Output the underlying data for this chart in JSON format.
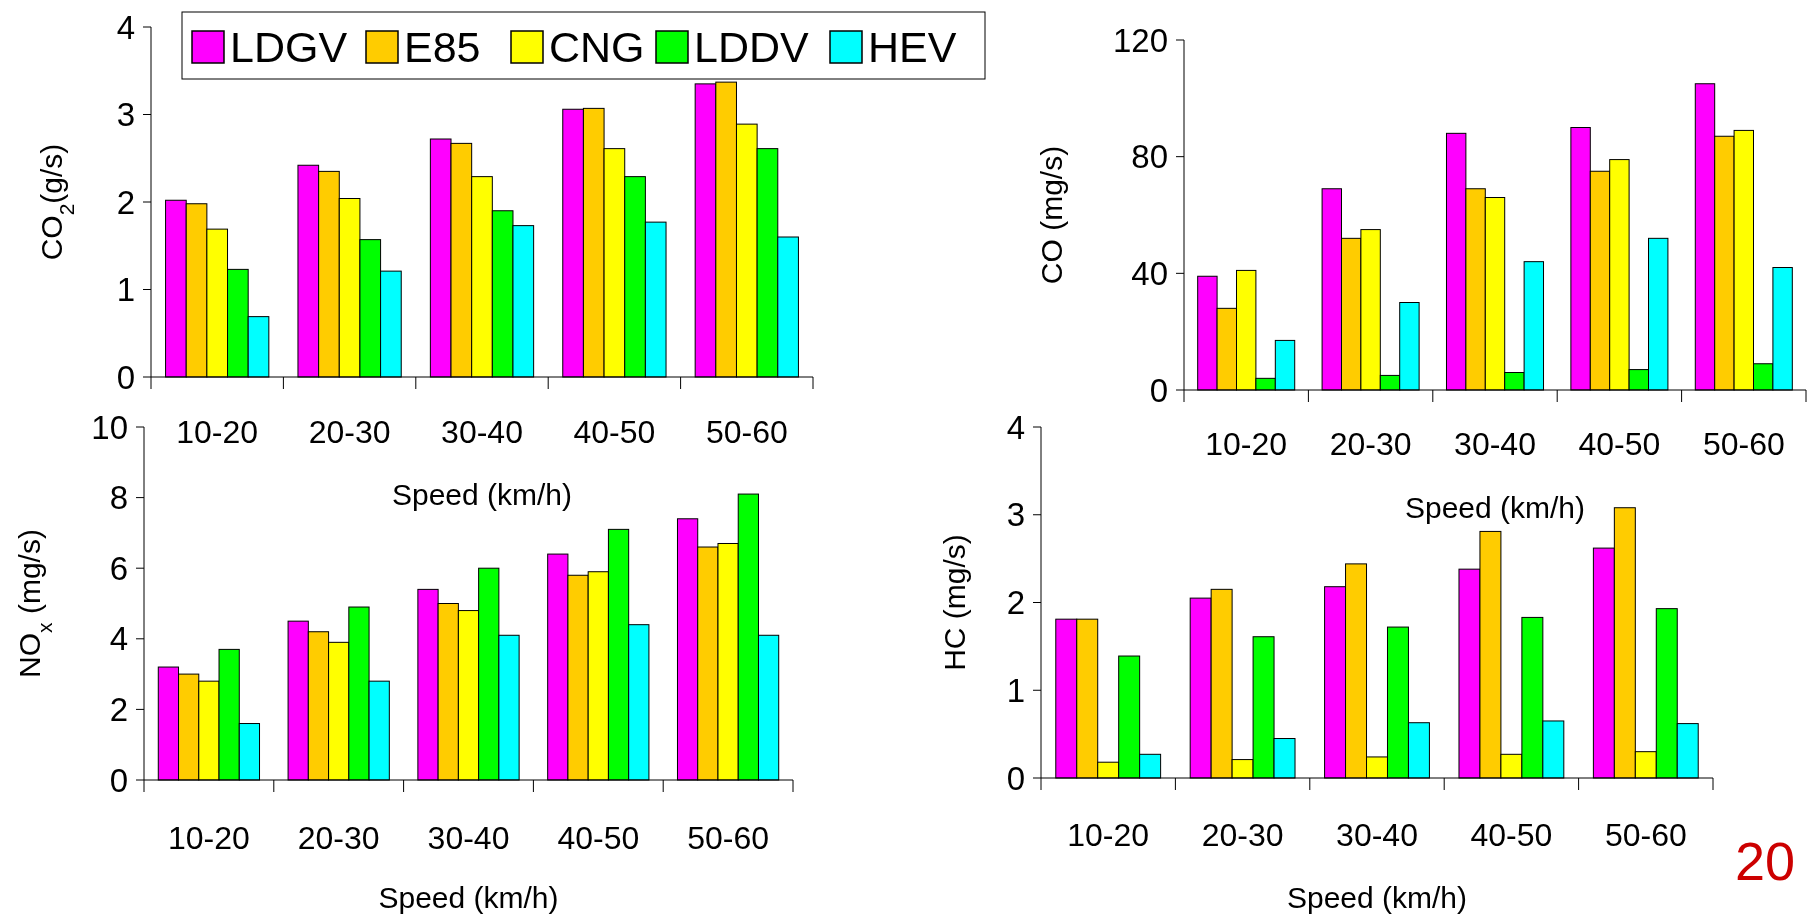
{
  "chart_data": [
    {
      "type": "bar",
      "ylabel": "CO$_{2}$(g/s)",
      "xlabel": "Speed (km/h)",
      "categories": [
        "10-20",
        "20-30",
        "30-40",
        "40-50",
        "50-60"
      ],
      "ylim": [
        0,
        4
      ],
      "yticks": [
        0,
        1,
        2,
        3,
        4
      ],
      "legend": "top",
      "series": [
        {
          "name": "LDGV",
          "color": "#ff00ff",
          "values": [
            2.02,
            2.42,
            2.72,
            3.06,
            3.35
          ]
        },
        {
          "name": "E85",
          "color": "#ffcc00",
          "values": [
            1.98,
            2.35,
            2.67,
            3.07,
            3.37
          ]
        },
        {
          "name": "CNG",
          "color": "#ffff00",
          "values": [
            1.69,
            2.04,
            2.29,
            2.61,
            2.89
          ]
        },
        {
          "name": "LDDV",
          "color": "#00ff00",
          "values": [
            1.23,
            1.57,
            1.9,
            2.29,
            2.61
          ]
        },
        {
          "name": "HEV",
          "color": "#00ffff",
          "values": [
            0.69,
            1.21,
            1.73,
            1.77,
            1.6
          ]
        }
      ]
    },
    {
      "type": "bar",
      "ylabel": "CO (mg/s)",
      "xlabel": "Speed (km/h)",
      "categories": [
        "10-20",
        "20-30",
        "30-40",
        "40-50",
        "50-60"
      ],
      "ylim": [
        0,
        120
      ],
      "yticks": [
        0,
        40,
        80,
        120
      ],
      "series": [
        {
          "color": "#ff00ff",
          "values": [
            39,
            69,
            88,
            90,
            105
          ]
        },
        {
          "color": "#ffcc00",
          "values": [
            28,
            52,
            69,
            75,
            87
          ]
        },
        {
          "color": "#ffff00",
          "values": [
            41,
            55,
            66,
            79,
            89
          ]
        },
        {
          "color": "#00ff00",
          "values": [
            4,
            5,
            6,
            7,
            9
          ]
        },
        {
          "color": "#00ffff",
          "values": [
            17,
            30,
            44,
            52,
            42
          ]
        }
      ]
    },
    {
      "type": "bar",
      "ylabel": "NO$_{x}$ (mg/s)",
      "xlabel": "Speed (km/h)",
      "categories": [
        "10-20",
        "20-30",
        "30-40",
        "40-50",
        "50-60"
      ],
      "ylim": [
        0,
        10
      ],
      "yticks": [
        0,
        2,
        4,
        6,
        8,
        10
      ],
      "series": [
        {
          "color": "#ff00ff",
          "values": [
            3.2,
            4.5,
            5.4,
            6.4,
            7.4
          ]
        },
        {
          "color": "#ffcc00",
          "values": [
            3.0,
            4.2,
            5.0,
            5.8,
            6.6
          ]
        },
        {
          "color": "#ffff00",
          "values": [
            2.8,
            3.9,
            4.8,
            5.9,
            6.7
          ]
        },
        {
          "color": "#00ff00",
          "values": [
            3.7,
            4.9,
            6.0,
            7.1,
            8.1
          ]
        },
        {
          "color": "#00ffff",
          "values": [
            1.6,
            2.8,
            4.1,
            4.4,
            4.1
          ]
        }
      ]
    },
    {
      "type": "bar",
      "ylabel": "HC (mg/s)",
      "xlabel": "Speed (km/h)",
      "categories": [
        "10-20",
        "20-30",
        "30-40",
        "40-50",
        "50-60"
      ],
      "ylim": [
        0,
        4
      ],
      "yticks": [
        0,
        1,
        2,
        3,
        4
      ],
      "annotations": [
        "20"
      ],
      "series": [
        {
          "color": "#ff00ff",
          "values": [
            1.81,
            2.05,
            2.18,
            2.38,
            2.62
          ]
        },
        {
          "color": "#ffcc00",
          "values": [
            1.81,
            2.15,
            2.44,
            2.81,
            3.08
          ]
        },
        {
          "color": "#ffff00",
          "values": [
            0.18,
            0.21,
            0.24,
            0.27,
            0.3
          ]
        },
        {
          "color": "#00ff00",
          "values": [
            1.39,
            1.61,
            1.72,
            1.83,
            1.93
          ]
        },
        {
          "color": "#00ffff",
          "values": [
            0.27,
            0.45,
            0.63,
            0.65,
            0.62
          ]
        }
      ]
    }
  ]
}
